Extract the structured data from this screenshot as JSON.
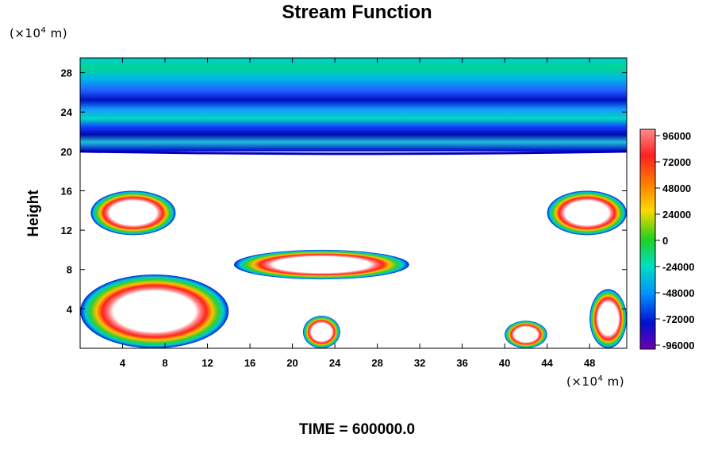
{
  "chart_data": {
    "type": "contour",
    "title": "Stream Function",
    "ylabel": "Height",
    "x_unit": "(×10",
    "y_unit": "(×10",
    "unit_exp": "4",
    "unit_tail": "m)",
    "x_ticks": [
      4,
      8,
      12,
      16,
      20,
      24,
      28,
      32,
      36,
      40,
      44,
      48
    ],
    "y_ticks": [
      4,
      8,
      12,
      16,
      20,
      24,
      28
    ],
    "xlim": [
      0,
      51.5
    ],
    "ylim": [
      0,
      29.5
    ],
    "colorbar": {
      "labels": [
        "96000",
        "72000",
        "48000",
        "24000",
        "0",
        "-24000",
        "-48000",
        "-72000",
        "-96000"
      ],
      "levels": [
        96000,
        72000,
        48000,
        24000,
        0,
        -24000,
        -48000,
        -72000,
        -96000
      ]
    },
    "features": [
      {
        "name": "upper band",
        "x": [
          0,
          51.5
        ],
        "y": [
          20,
          29.5
        ],
        "value": -60000
      },
      {
        "name": "left closed contour",
        "x": [
          1,
          9
        ],
        "y": [
          11.5,
          16
        ],
        "value": 96000
      },
      {
        "name": "mid elongated contour",
        "x": [
          14.5,
          31
        ],
        "y": [
          7,
          10
        ],
        "value": 96000
      },
      {
        "name": "bottom left cell",
        "x": [
          0,
          14
        ],
        "y": [
          0,
          7.5
        ],
        "value": 96000
      },
      {
        "name": "bottom center cell",
        "x": [
          21,
          24.5
        ],
        "y": [
          0,
          3.3
        ],
        "value": 96000
      },
      {
        "name": "bottom right cell",
        "x": [
          40,
          44
        ],
        "y": [
          0,
          2.8
        ],
        "value": 96000
      },
      {
        "name": "right edge cell",
        "x": [
          48,
          51.5
        ],
        "y": [
          0,
          6
        ],
        "value": 96000
      },
      {
        "name": "right upper cell",
        "x": [
          44,
          51.5
        ],
        "y": [
          11.5,
          16
        ],
        "value": 96000
      }
    ]
  },
  "time_label": "TIME = 600000.0"
}
